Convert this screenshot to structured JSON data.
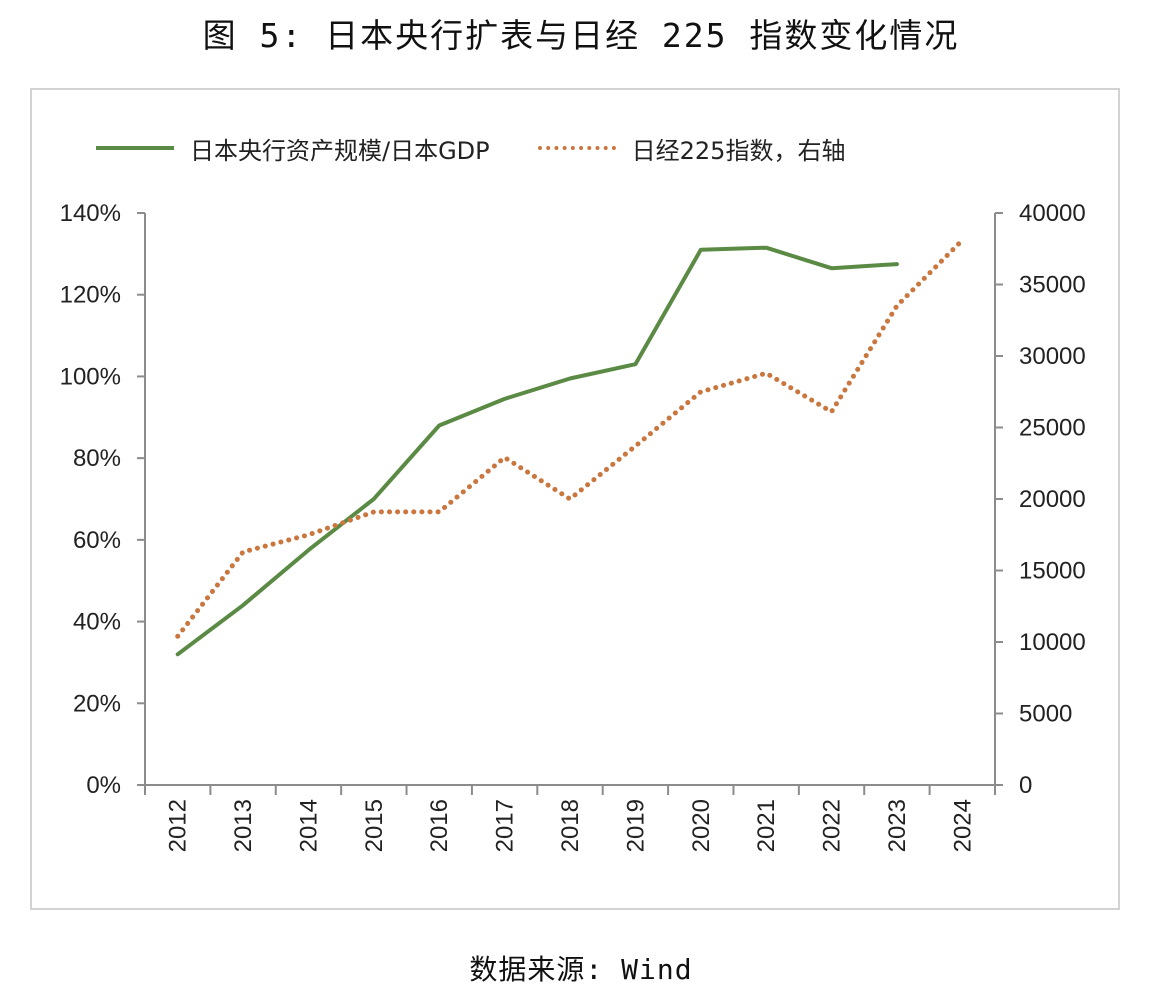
{
  "figure": {
    "title": "图 5: 日本央行扩表与日经 225 指数变化情况",
    "source": "数据来源: Wind"
  },
  "chart_data": {
    "type": "line",
    "title": "",
    "categories": [
      "2012",
      "2013",
      "2014",
      "2015",
      "2016",
      "2017",
      "2018",
      "2019",
      "2020",
      "2021",
      "2022",
      "2023",
      "2024"
    ],
    "legend_position": "top-left",
    "grid": false,
    "left_axis": {
      "min": 0,
      "max": 1.4,
      "step": 0.2,
      "tick_labels": [
        "0%",
        "20%",
        "40%",
        "60%",
        "80%",
        "100%",
        "120%",
        "140%"
      ]
    },
    "right_axis": {
      "min": 0,
      "max": 40000,
      "step": 5000,
      "tick_labels": [
        "0",
        "5000",
        "10000",
        "15000",
        "20000",
        "25000",
        "30000",
        "35000",
        "40000"
      ]
    },
    "series": [
      {
        "name": "日本央行资产规模/日本GDP",
        "axis": "left",
        "style": "solid",
        "color": "#5b8a45",
        "values": [
          0.32,
          0.44,
          0.575,
          0.7,
          0.88,
          0.945,
          0.995,
          1.03,
          1.31,
          1.315,
          1.265,
          1.275,
          null
        ]
      },
      {
        "name": "日经225指数，右轴",
        "axis": "right",
        "style": "dotted",
        "color": "#c9773f",
        "values": [
          10400,
          16300,
          17500,
          19100,
          19100,
          22900,
          20000,
          23700,
          27500,
          28800,
          26100,
          33500,
          38100
        ]
      }
    ]
  }
}
